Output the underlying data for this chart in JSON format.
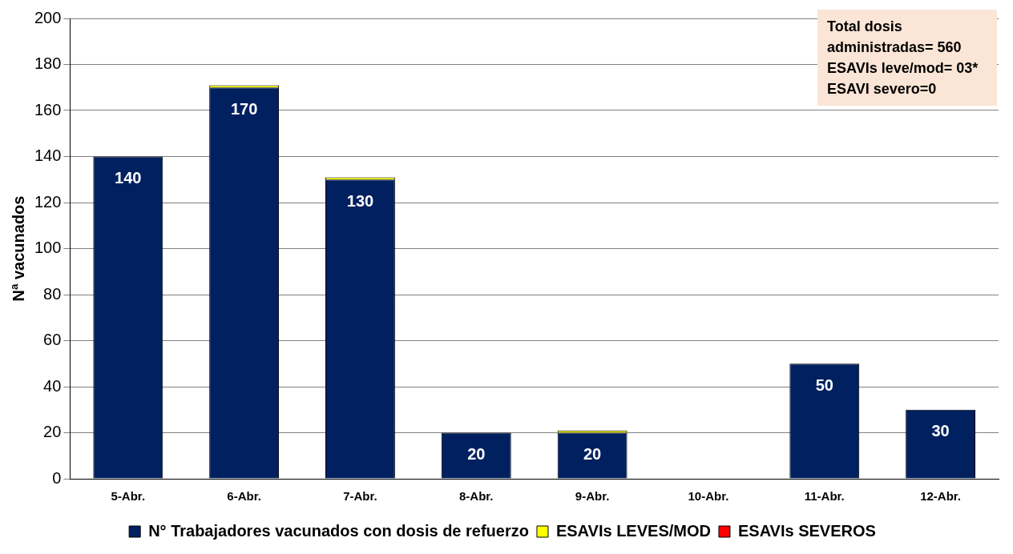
{
  "chart_data": {
    "type": "bar",
    "ylabel": "Nª vacunados",
    "categories": [
      "5-Abr.",
      "6-Abr.",
      "7-Abr.",
      "8-Abr.",
      "9-Abr.",
      "10-Abr.",
      "11-Abr.",
      "12-Abr."
    ],
    "series": [
      {
        "name": "N° Trabajadores vacunados con dosis de refuerzo",
        "color": "#002060",
        "values": [
          140,
          170,
          130,
          20,
          20,
          null,
          50,
          30
        ],
        "value_labels": [
          "140",
          "170",
          "130",
          "20",
          "20",
          null,
          "50",
          "30"
        ]
      },
      {
        "name": "ESAVIs LEVES/MOD",
        "color": "#ffff00",
        "values": [
          null,
          1,
          1,
          null,
          1,
          null,
          null,
          null
        ]
      },
      {
        "name": "ESAVIs SEVEROS",
        "color": "#ff0000",
        "values": [
          null,
          null,
          null,
          null,
          null,
          null,
          null,
          null
        ]
      }
    ],
    "stacked": true,
    "ylim": [
      0,
      200
    ],
    "yticks": [
      0,
      20,
      40,
      60,
      80,
      100,
      120,
      140,
      160,
      180,
      200
    ],
    "grid": "y",
    "legend": "bottom",
    "annotations": [
      "Total dosis administradas= 560",
      "ESAVIs leve/mod= 03*",
      "ESAVI severo=0"
    ]
  }
}
